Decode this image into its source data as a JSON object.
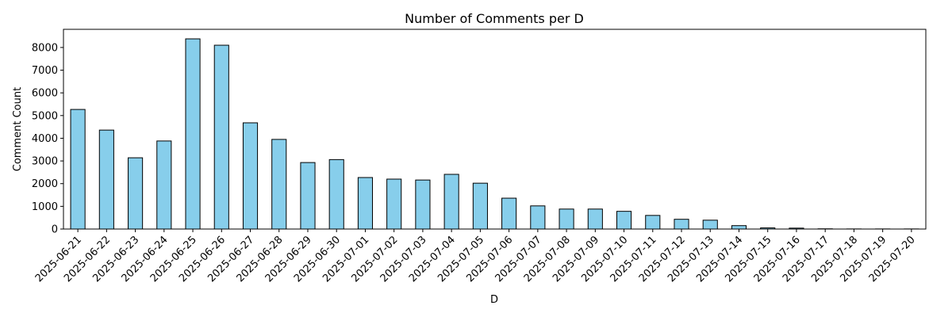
{
  "chart_data": {
    "type": "bar",
    "title": "Number of Comments per D",
    "xlabel": "D",
    "ylabel": "Comment Count",
    "categories": [
      "2025-06-21",
      "2025-06-22",
      "2025-06-23",
      "2025-06-24",
      "2025-06-25",
      "2025-06-26",
      "2025-06-27",
      "2025-06-28",
      "2025-06-29",
      "2025-06-30",
      "2025-07-01",
      "2025-07-02",
      "2025-07-03",
      "2025-07-04",
      "2025-07-05",
      "2025-07-06",
      "2025-07-07",
      "2025-07-08",
      "2025-07-09",
      "2025-07-10",
      "2025-07-11",
      "2025-07-12",
      "2025-07-13",
      "2025-07-14",
      "2025-07-15",
      "2025-07-16",
      "2025-07-17",
      "2025-07-18",
      "2025-07-19",
      "2025-07-20"
    ],
    "values": [
      5270,
      4360,
      3140,
      3880,
      8380,
      8100,
      4680,
      3950,
      2930,
      3060,
      2270,
      2200,
      2160,
      2410,
      2020,
      1360,
      1020,
      880,
      880,
      780,
      600,
      430,
      390,
      150,
      50,
      40,
      10,
      5,
      5,
      5
    ],
    "ylim": [
      0,
      8800
    ],
    "yticks": [
      0,
      1000,
      2000,
      3000,
      4000,
      5000,
      6000,
      7000,
      8000
    ],
    "bar_color": "#87ceeb",
    "edge_color": "#000000",
    "grid": false,
    "legend": "none"
  }
}
